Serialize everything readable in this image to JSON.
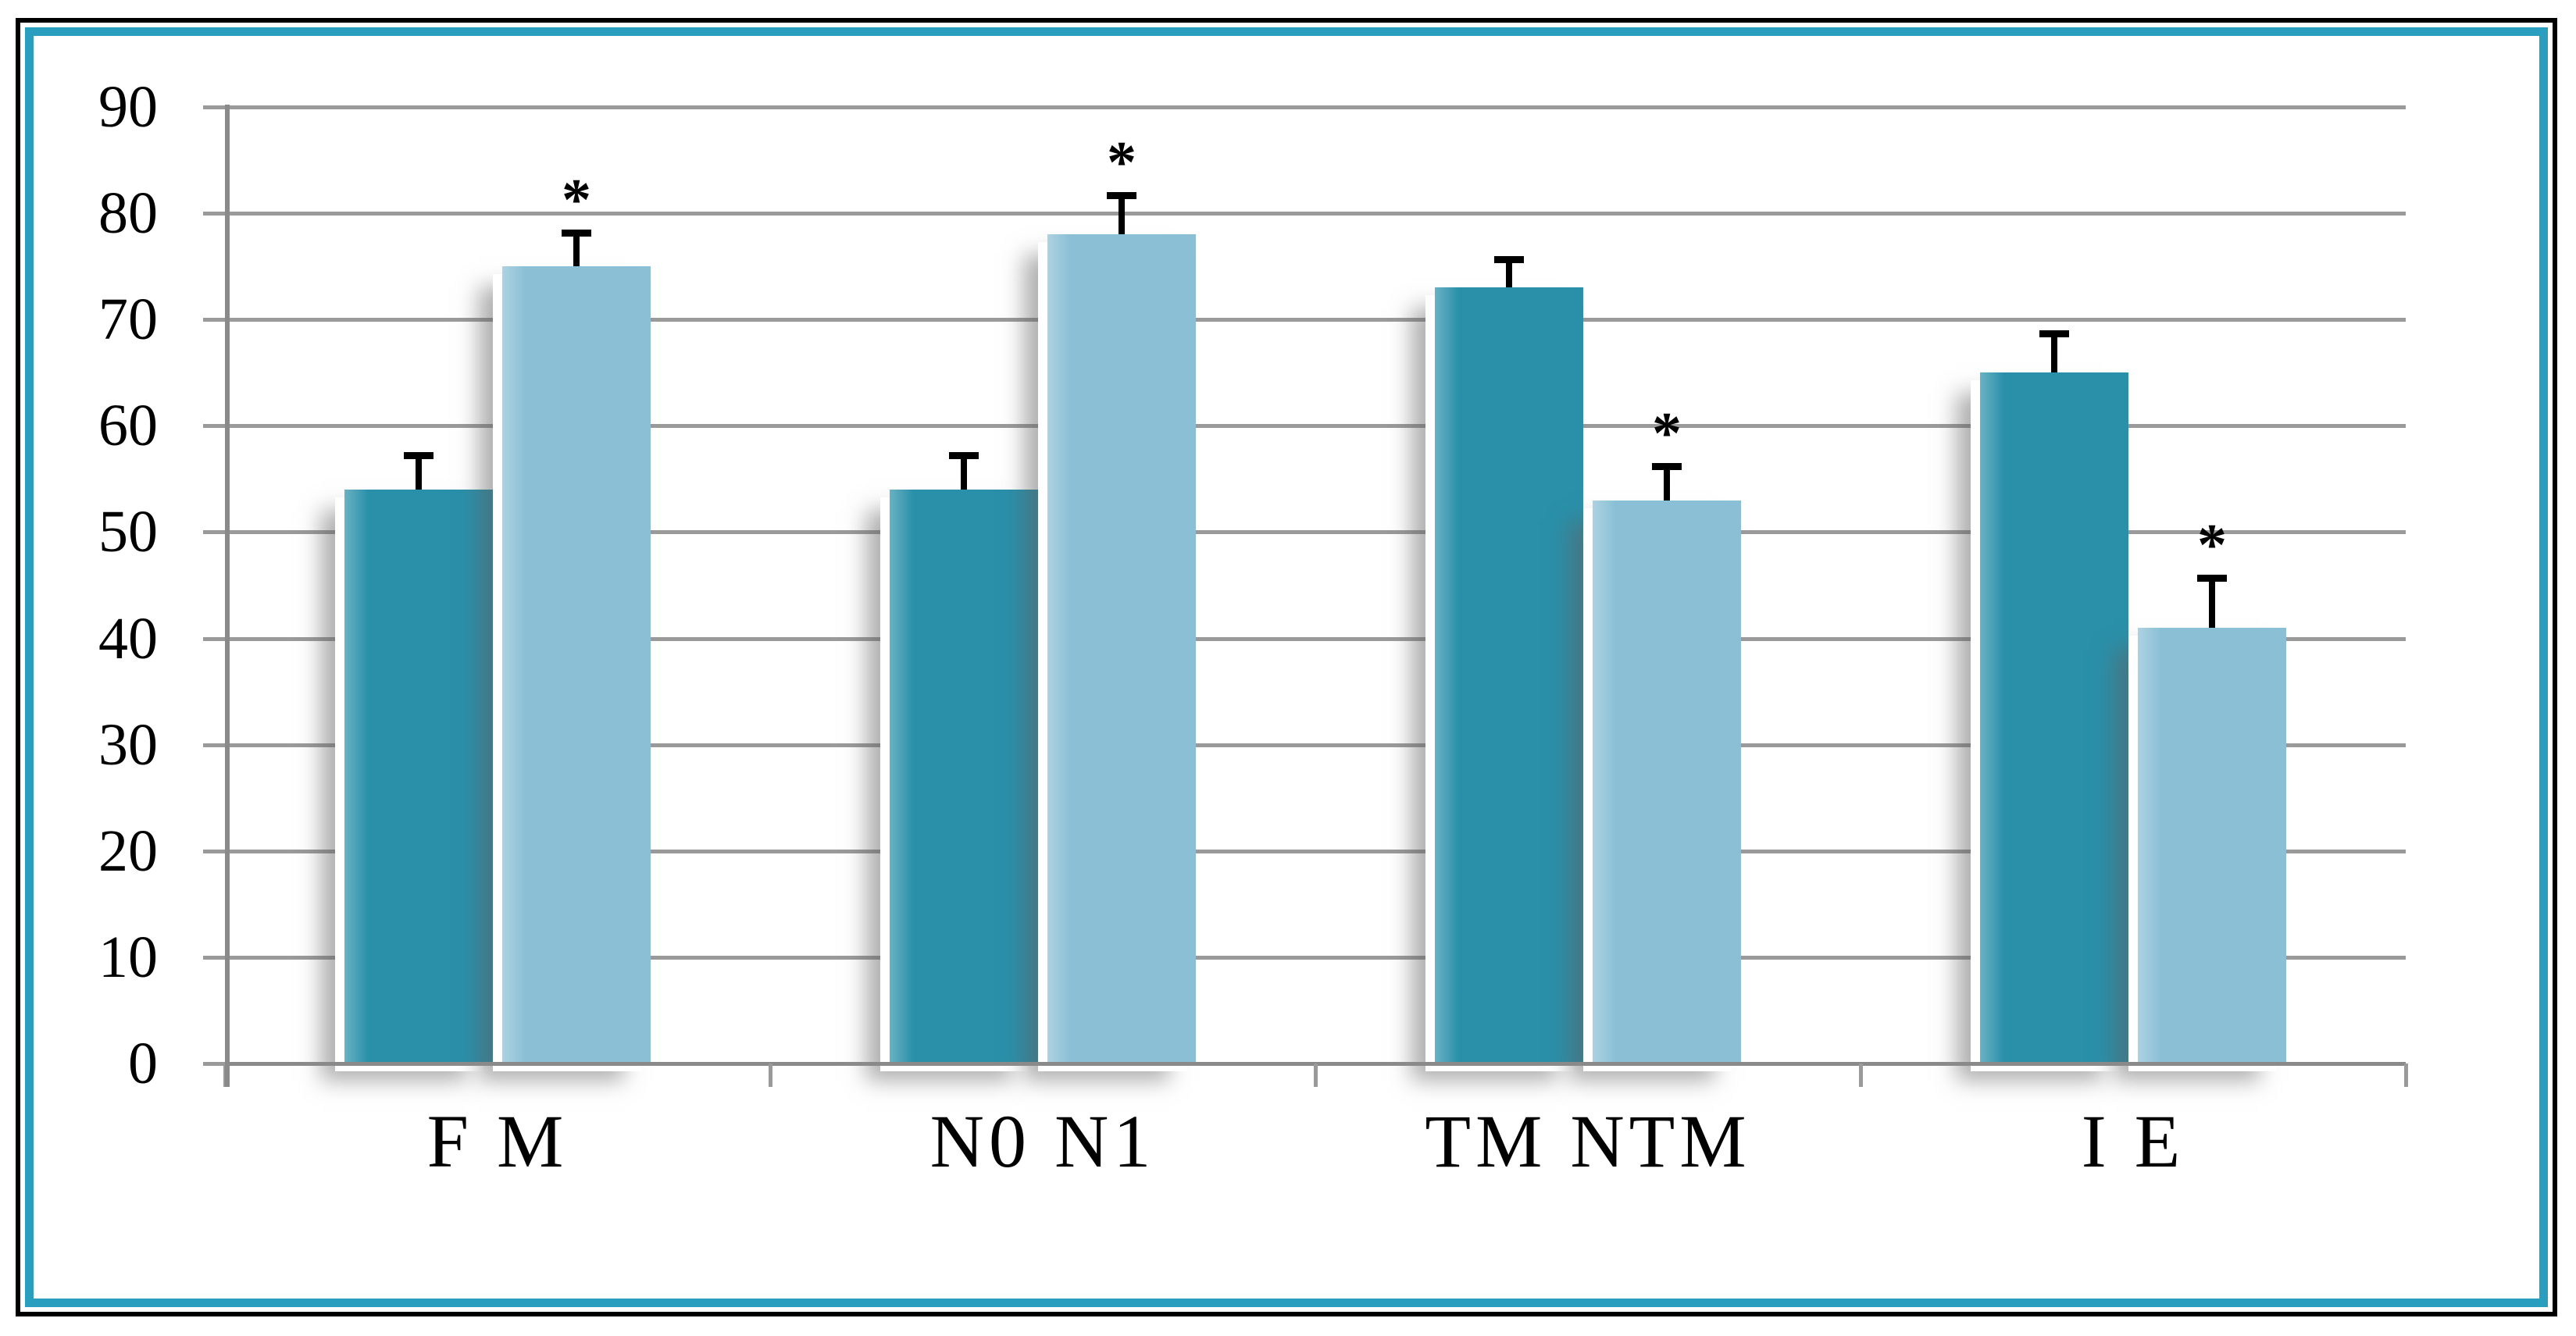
{
  "chart_data": {
    "type": "bar",
    "title": "",
    "xlabel": "",
    "ylabel": "",
    "categories": [
      "F",
      "M",
      "N0",
      "N1",
      "TM",
      "NTM",
      "I",
      "E"
    ],
    "values": [
      54,
      75,
      54,
      78,
      73,
      53,
      65,
      41
    ],
    "error_upper": [
      3.5,
      3.5,
      3.5,
      4,
      3,
      3.5,
      4,
      5
    ],
    "significant": [
      false,
      true,
      false,
      true,
      false,
      true,
      false,
      true
    ],
    "significance_marker": "*",
    "groups": [
      {
        "label": "F M",
        "bars": [
          {
            "name": "F",
            "value": 54,
            "error_upper": 3.5,
            "series": "dark",
            "significant": false
          },
          {
            "name": "M",
            "value": 75,
            "error_upper": 3.5,
            "series": "light",
            "significant": true
          }
        ]
      },
      {
        "label": "N0 N1",
        "bars": [
          {
            "name": "N0",
            "value": 54,
            "error_upper": 3.5,
            "series": "dark",
            "significant": false
          },
          {
            "name": "N1",
            "value": 78,
            "error_upper": 4,
            "series": "light",
            "significant": true
          }
        ]
      },
      {
        "label": "TM NTM",
        "bars": [
          {
            "name": "TM",
            "value": 73,
            "error_upper": 3,
            "series": "dark",
            "significant": false
          },
          {
            "name": "NTM",
            "value": 53,
            "error_upper": 3.5,
            "series": "light",
            "significant": true
          }
        ]
      },
      {
        "label": "I E",
        "bars": [
          {
            "name": "I",
            "value": 65,
            "error_upper": 4,
            "series": "dark",
            "significant": false
          },
          {
            "name": "E",
            "value": 41,
            "error_upper": 5,
            "series": "light",
            "significant": true
          }
        ]
      }
    ],
    "y_axis": {
      "min": 0,
      "max": 90,
      "step": 10,
      "tick_labels": [
        "0",
        "10",
        "20",
        "30",
        "40",
        "50",
        "60",
        "70",
        "80",
        "90"
      ]
    },
    "grid": true,
    "legend": false,
    "error_bars": "upper",
    "colors": {
      "dark_series": "#2A90AA",
      "light_series": "#8ABFD5"
    }
  },
  "style": {
    "frame_outer_border": "#000000",
    "frame_inner_border": "#299EBF",
    "background": "#FFFFFF",
    "gridline_color": "#9A9A9A",
    "axis_color": "#8A8A8A",
    "error_bar_color": "#000000",
    "text_color": "#000000"
  }
}
